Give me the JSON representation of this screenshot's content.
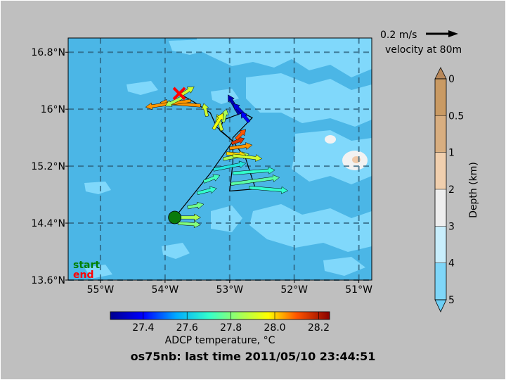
{
  "title": "os75nb: last time 2011/05/10 23:44:51",
  "scale": {
    "label": "0.2 m/s",
    "sublabel": "velocity at 80m"
  },
  "legend": {
    "start": "start",
    "end": "end",
    "start_color": "#008000",
    "end_color": "#ff0000"
  },
  "colors": {
    "ocean": "#4bb6e6",
    "shallow": "#80d8fb",
    "track": "#000000"
  },
  "chart_data": {
    "type": "scatter",
    "title": "os75nb: last time 2011/05/10 23:44:51",
    "x_ticks": [
      "55°W",
      "54°W",
      "53°W",
      "52°W",
      "51°W"
    ],
    "x_tick_values": [
      -55,
      -54,
      -53,
      -52,
      -51
    ],
    "y_ticks": [
      "13.6°N",
      "14.4°N",
      "15.2°N",
      "16°N",
      "16.8°N"
    ],
    "y_tick_values": [
      13.6,
      14.4,
      15.2,
      16.0,
      16.8
    ],
    "xlim": [
      -55.5,
      -50.8
    ],
    "ylim": [
      13.6,
      17.0
    ],
    "grid": true,
    "start_point": {
      "lon": -53.85,
      "lat": 14.48
    },
    "end_point": {
      "lon": -53.78,
      "lat": 16.22
    },
    "track": [
      {
        "lon": -53.85,
        "lat": 14.48
      },
      {
        "lon": -53.3,
        "lat": 15.1
      },
      {
        "lon": -52.95,
        "lat": 15.55
      },
      {
        "lon": -53.15,
        "lat": 15.7
      },
      {
        "lon": -53.1,
        "lat": 15.85
      },
      {
        "lon": -52.8,
        "lat": 15.95
      },
      {
        "lon": -52.65,
        "lat": 15.88
      },
      {
        "lon": -52.95,
        "lat": 15.6
      },
      {
        "lon": -52.95,
        "lat": 15.25
      },
      {
        "lon": -53.0,
        "lat": 14.85
      },
      {
        "lon": -52.6,
        "lat": 14.88
      },
      {
        "lon": -52.75,
        "lat": 15.3
      },
      {
        "lon": -52.95,
        "lat": 15.55
      },
      {
        "lon": -53.2,
        "lat": 15.75
      },
      {
        "lon": -53.3,
        "lat": 15.95
      },
      {
        "lon": -53.55,
        "lat": 16.1
      },
      {
        "lon": -53.78,
        "lat": 16.22
      }
    ],
    "vectors": [
      {
        "lon": -53.85,
        "lat": 14.48,
        "u": 0.16,
        "v": 0.0,
        "temp": 27.85
      },
      {
        "lon": -53.8,
        "lat": 14.4,
        "u": 0.14,
        "v": -0.01,
        "temp": 27.8
      },
      {
        "lon": -53.65,
        "lat": 14.62,
        "u": 0.1,
        "v": 0.02,
        "temp": 27.78
      },
      {
        "lon": -53.5,
        "lat": 14.82,
        "u": 0.12,
        "v": 0.03,
        "temp": 27.7
      },
      {
        "lon": -53.4,
        "lat": 14.98,
        "u": 0.1,
        "v": 0.04,
        "temp": 27.72
      },
      {
        "lon": -53.25,
        "lat": 15.15,
        "u": 0.2,
        "v": 0.04,
        "temp": 27.65
      },
      {
        "lon": -53.1,
        "lat": 15.3,
        "u": 0.16,
        "v": 0.03,
        "temp": 27.85
      },
      {
        "lon": -53.05,
        "lat": 15.38,
        "u": 0.12,
        "v": -0.01,
        "temp": 28.0
      },
      {
        "lon": -53.0,
        "lat": 15.45,
        "u": 0.14,
        "v": 0.02,
        "temp": 28.05
      },
      {
        "lon": -52.97,
        "lat": 15.52,
        "u": 0.08,
        "v": 0.03,
        "temp": 28.15
      },
      {
        "lon": -53.12,
        "lat": 15.7,
        "u": -0.03,
        "v": 0.1,
        "temp": 27.9
      },
      {
        "lon": -53.1,
        "lat": 15.82,
        "u": 0.02,
        "v": 0.08,
        "temp": 27.85
      },
      {
        "lon": -52.85,
        "lat": 15.93,
        "u": -0.07,
        "v": 0.12,
        "temp": 27.3
      },
      {
        "lon": -52.75,
        "lat": 15.9,
        "u": -0.08,
        "v": 0.08,
        "temp": 27.35
      },
      {
        "lon": -52.7,
        "lat": 15.82,
        "u": -0.05,
        "v": 0.06,
        "temp": 27.4
      },
      {
        "lon": -52.9,
        "lat": 15.58,
        "u": 0.06,
        "v": 0.06,
        "temp": 28.1
      },
      {
        "lon": -52.95,
        "lat": 15.35,
        "u": 0.18,
        "v": -0.02,
        "temp": 27.9
      },
      {
        "lon": -52.95,
        "lat": 15.1,
        "u": 0.26,
        "v": 0.02,
        "temp": 27.7
      },
      {
        "lon": -52.98,
        "lat": 14.95,
        "u": 0.3,
        "v": 0.04,
        "temp": 27.75
      },
      {
        "lon": -52.7,
        "lat": 14.9,
        "u": 0.24,
        "v": -0.02,
        "temp": 27.7
      },
      {
        "lon": -53.25,
        "lat": 15.72,
        "u": 0.06,
        "v": 0.1,
        "temp": 27.95
      },
      {
        "lon": -53.35,
        "lat": 15.9,
        "u": -0.02,
        "v": 0.08,
        "temp": 27.9
      },
      {
        "lon": -53.45,
        "lat": 16.05,
        "u": -0.25,
        "v": 0.02,
        "temp": 28.05
      },
      {
        "lon": -53.6,
        "lat": 16.12,
        "u": -0.28,
        "v": -0.04,
        "temp": 28.05
      },
      {
        "lon": -53.7,
        "lat": 16.18,
        "u": -0.12,
        "v": -0.06,
        "temp": 27.85
      },
      {
        "lon": -53.75,
        "lat": 16.2,
        "u": 0.08,
        "v": 0.05,
        "temp": 27.9
      }
    ],
    "colorbar": {
      "label": "ADCP temperature, °C",
      "ticks": [
        "27.4",
        "27.6",
        "27.8",
        "28.0",
        "28.2"
      ],
      "range": [
        27.25,
        28.25
      ]
    },
    "depth_colorbar": {
      "label": "Depth (km)",
      "ticks": [
        "0",
        "0.5",
        "1",
        "2",
        "3",
        "4",
        "5"
      ]
    }
  }
}
